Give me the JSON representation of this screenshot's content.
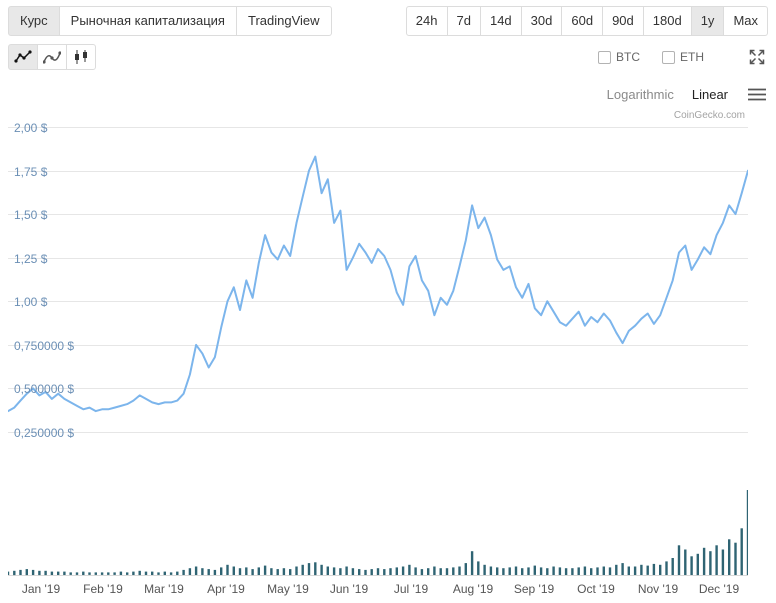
{
  "colors": {
    "price_line": "#7cb5ec",
    "volume_bar": "#2f6473",
    "grid_line": "#e6e6e6",
    "axis_line": "#d9d9d9",
    "y_label": "#6b8fb5",
    "x_label": "#555555"
  },
  "tabs": [
    {
      "label": "Курс",
      "active": true
    },
    {
      "label": "Рыночная капитализация",
      "active": false
    },
    {
      "label": "TradingView",
      "active": false
    }
  ],
  "ranges": [
    {
      "label": "24h",
      "active": false
    },
    {
      "label": "7d",
      "active": false
    },
    {
      "label": "14d",
      "active": false
    },
    {
      "label": "30d",
      "active": false
    },
    {
      "label": "60d",
      "active": false
    },
    {
      "label": "90d",
      "active": false
    },
    {
      "label": "180d",
      "active": false
    },
    {
      "label": "1y",
      "active": true
    },
    {
      "label": "Max",
      "active": false
    }
  ],
  "chart_type_buttons": [
    {
      "name": "line-chart",
      "active": true
    },
    {
      "name": "spline-chart",
      "active": false
    },
    {
      "name": "candlestick-chart",
      "active": false
    }
  ],
  "coin_toggles": [
    {
      "label": "BTC",
      "checked": false
    },
    {
      "label": "ETH",
      "checked": false
    }
  ],
  "scale_options": {
    "logarithmic": "Logarithmic",
    "linear": "Linear",
    "selected": "Linear"
  },
  "watermark": "CoinGecko.com",
  "chart_data": {
    "type": "line",
    "x_labels": [
      "Jan '19",
      "Feb '19",
      "Mar '19",
      "Apr '19",
      "May '19",
      "Jun '19",
      "Jul '19",
      "Aug '19",
      "Sep '19",
      "Oct '19",
      "Nov '19",
      "Dec '19"
    ],
    "ylim": [
      0.25,
      2.0
    ],
    "y_ticks": [
      {
        "value": 2.0,
        "label": "2,00 $"
      },
      {
        "value": 1.75,
        "label": "1,75 $"
      },
      {
        "value": 1.5,
        "label": "1,50 $"
      },
      {
        "value": 1.25,
        "label": "1,25 $"
      },
      {
        "value": 1.0,
        "label": "1,00 $"
      },
      {
        "value": 0.75,
        "label": "0,750000 $"
      },
      {
        "value": 0.5,
        "label": "0,500000 $"
      },
      {
        "value": 0.25,
        "label": "0,250000 $"
      }
    ],
    "grid": "horizontal",
    "legend": "none",
    "series": [
      {
        "name": "price_usd",
        "color": "#7cb5ec",
        "values": [
          0.37,
          0.39,
          0.43,
          0.47,
          0.5,
          0.46,
          0.48,
          0.44,
          0.47,
          0.44,
          0.42,
          0.4,
          0.38,
          0.39,
          0.37,
          0.38,
          0.38,
          0.39,
          0.4,
          0.41,
          0.43,
          0.46,
          0.44,
          0.42,
          0.41,
          0.42,
          0.42,
          0.43,
          0.47,
          0.58,
          0.75,
          0.7,
          0.62,
          0.68,
          0.85,
          1.0,
          1.08,
          0.95,
          1.12,
          1.02,
          1.22,
          1.38,
          1.28,
          1.24,
          1.32,
          1.26,
          1.45,
          1.6,
          1.75,
          1.83,
          1.62,
          1.7,
          1.45,
          1.52,
          1.18,
          1.25,
          1.33,
          1.28,
          1.22,
          1.3,
          1.26,
          1.18,
          1.05,
          0.98,
          1.2,
          1.26,
          1.12,
          1.06,
          0.92,
          1.02,
          0.98,
          1.06,
          1.2,
          1.35,
          1.55,
          1.42,
          1.48,
          1.38,
          1.24,
          1.18,
          1.2,
          1.08,
          1.02,
          1.1,
          0.96,
          0.92,
          1.0,
          0.94,
          0.88,
          0.86,
          0.9,
          0.94,
          0.86,
          0.91,
          0.88,
          0.93,
          0.89,
          0.82,
          0.76,
          0.83,
          0.86,
          0.9,
          0.93,
          0.87,
          0.92,
          1.02,
          1.12,
          1.28,
          1.32,
          1.18,
          1.24,
          1.31,
          1.27,
          1.38,
          1.45,
          1.55,
          1.5,
          1.62,
          1.75
        ]
      }
    ],
    "volume": {
      "name": "volume",
      "color": "#2f6473",
      "values_normalized": [
        0.04,
        0.05,
        0.06,
        0.07,
        0.06,
        0.05,
        0.05,
        0.04,
        0.04,
        0.04,
        0.03,
        0.03,
        0.04,
        0.03,
        0.03,
        0.03,
        0.03,
        0.03,
        0.04,
        0.03,
        0.04,
        0.05,
        0.04,
        0.04,
        0.03,
        0.04,
        0.03,
        0.04,
        0.06,
        0.08,
        0.1,
        0.08,
        0.07,
        0.06,
        0.09,
        0.12,
        0.1,
        0.08,
        0.09,
        0.07,
        0.09,
        0.11,
        0.08,
        0.07,
        0.08,
        0.07,
        0.1,
        0.12,
        0.14,
        0.15,
        0.12,
        0.1,
        0.09,
        0.08,
        0.1,
        0.08,
        0.07,
        0.06,
        0.07,
        0.08,
        0.07,
        0.08,
        0.09,
        0.1,
        0.12,
        0.09,
        0.07,
        0.08,
        0.1,
        0.08,
        0.08,
        0.09,
        0.1,
        0.14,
        0.28,
        0.16,
        0.12,
        0.1,
        0.09,
        0.08,
        0.09,
        0.1,
        0.08,
        0.09,
        0.11,
        0.09,
        0.08,
        0.1,
        0.09,
        0.08,
        0.08,
        0.09,
        0.1,
        0.08,
        0.09,
        0.1,
        0.09,
        0.12,
        0.14,
        0.1,
        0.1,
        0.12,
        0.11,
        0.13,
        0.12,
        0.16,
        0.2,
        0.35,
        0.3,
        0.22,
        0.25,
        0.32,
        0.28,
        0.35,
        0.3,
        0.42,
        0.38,
        0.55,
        1.0
      ]
    }
  }
}
